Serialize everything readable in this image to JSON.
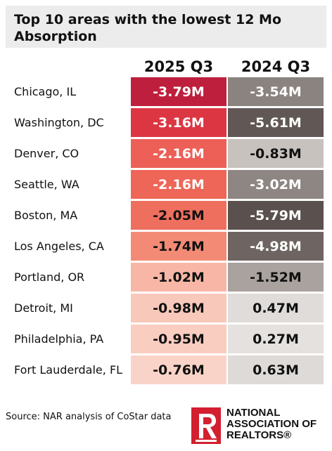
{
  "title": "Top 10 areas with the lowest 12 Mo Absorption",
  "chart_data": {
    "type": "table",
    "columns": [
      "2025 Q3",
      "2024 Q3"
    ],
    "rows": [
      {
        "area": "Chicago, IL",
        "q3_2025": -3.79,
        "q3_2024": -3.54,
        "label_2025": "-3.79M",
        "label_2024": "-3.54M"
      },
      {
        "area": "Washington, DC",
        "q3_2025": -3.16,
        "q3_2024": -5.61,
        "label_2025": "-3.16M",
        "label_2024": "-5.61M"
      },
      {
        "area": "Denver, CO",
        "q3_2025": -2.16,
        "q3_2024": -0.83,
        "label_2025": "-2.16M",
        "label_2024": "-0.83M"
      },
      {
        "area": "Seattle, WA",
        "q3_2025": -2.16,
        "q3_2024": -3.02,
        "label_2025": "-2.16M",
        "label_2024": "-3.02M"
      },
      {
        "area": "Boston, MA",
        "q3_2025": -2.05,
        "q3_2024": -5.79,
        "label_2025": "-2.05M",
        "label_2024": "-5.79M"
      },
      {
        "area": "Los Angeles, CA",
        "q3_2025": -1.74,
        "q3_2024": -4.98,
        "label_2025": "-1.74M",
        "label_2024": "-4.98M"
      },
      {
        "area": "Portland, OR",
        "q3_2025": -1.02,
        "q3_2024": -1.52,
        "label_2025": "-1.02M",
        "label_2024": "-1.52M"
      },
      {
        "area": "Detroit, MI",
        "q3_2025": -0.98,
        "q3_2024": 0.47,
        "label_2025": "-0.98M",
        "label_2024": "0.47M"
      },
      {
        "area": "Philadelphia, PA",
        "q3_2025": -0.95,
        "q3_2024": 0.27,
        "label_2025": "-0.95M",
        "label_2024": "0.27M"
      },
      {
        "area": "Fort Lauderdale, FL",
        "q3_2025": -0.76,
        "q3_2024": 0.63,
        "label_2025": "-0.76M",
        "label_2024": "0.63M"
      }
    ],
    "colors": {
      "q3_2025": [
        "#be1f3c",
        "#dc3643",
        "#ec6058",
        "#ee6658",
        "#ef6f5e",
        "#f38a75",
        "#f8b7a6",
        "#f8c8ba",
        "#f9cdc0",
        "#fad3c8"
      ],
      "q3_2024": [
        "#8b8380",
        "#615855",
        "#c8c2be",
        "#8e8682",
        "#5a514e",
        "#6e6562",
        "#aaa29f",
        "#e0dcd9",
        "#e4e1de",
        "#dedad7"
      ],
      "text_2025": [
        "#ffffff",
        "#ffffff",
        "#ffffff",
        "#ffffff",
        "#111111",
        "#111111",
        "#111111",
        "#111111",
        "#111111",
        "#111111"
      ],
      "text_2024": [
        "#ffffff",
        "#ffffff",
        "#111111",
        "#ffffff",
        "#ffffff",
        "#ffffff",
        "#111111",
        "#111111",
        "#111111",
        "#111111"
      ]
    }
  },
  "source": "Source: NAR analysis of CoStar data",
  "logo": {
    "lines": [
      "NATIONAL",
      "ASSOCIATION OF",
      "REALTORS®"
    ],
    "color": "#d31f2f"
  }
}
